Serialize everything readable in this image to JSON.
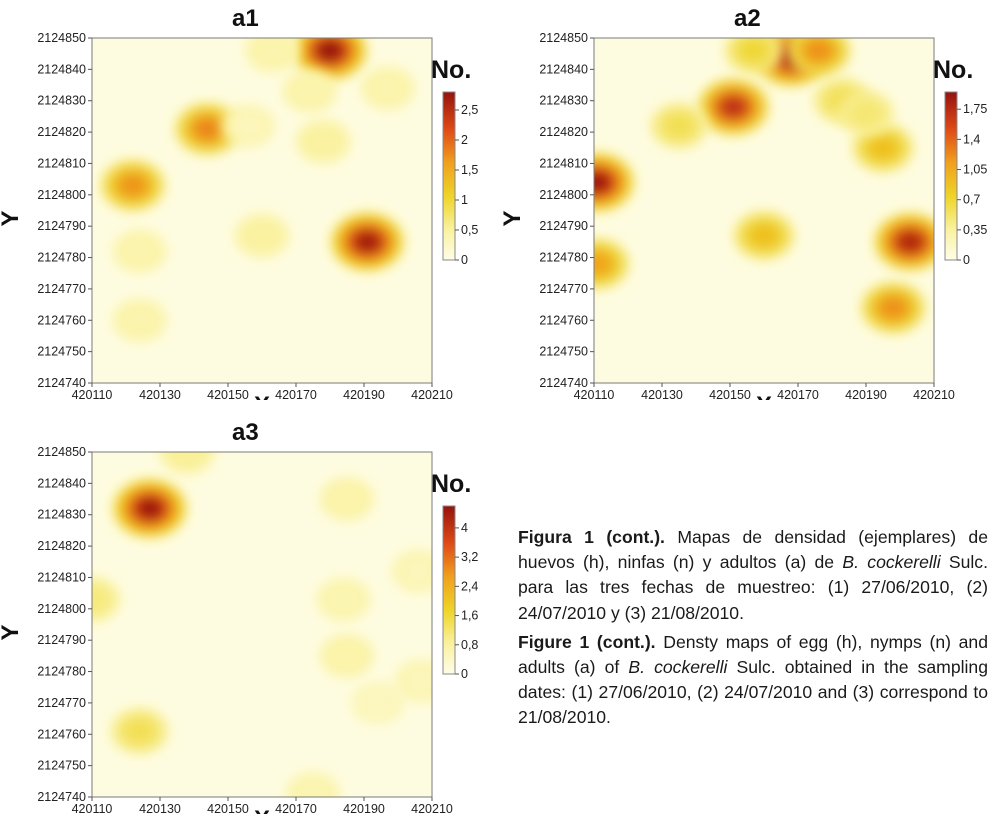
{
  "chart_data": [
    {
      "type": "heatmap",
      "title": "a1",
      "xlabel": "X",
      "ylabel": "Y",
      "xlim": [
        420110,
        420210
      ],
      "ylim": [
        2124740,
        2124850
      ],
      "xticks": [
        "420110",
        "420130",
        "420150",
        "420170",
        "420190",
        "420210"
      ],
      "yticks": [
        "2124850",
        "2124840",
        "2124830",
        "2124820",
        "2124810",
        "2124800",
        "2124790",
        "2124780",
        "2124770",
        "2124760",
        "2124750",
        "2124740"
      ],
      "colorbar": {
        "title": "No.",
        "min": 0,
        "max": 2.8,
        "ticks": [
          "2,5",
          "2",
          "1,5",
          "1",
          "0,5",
          "0"
        ],
        "tick_values": [
          2.5,
          2,
          1.5,
          1,
          0.5,
          0
        ]
      },
      "hotspots": [
        {
          "x": 420180,
          "y": 2124846,
          "value": 2.8
        },
        {
          "x": 420191,
          "y": 2124785,
          "value": 2.7
        },
        {
          "x": 420144,
          "y": 2124821,
          "value": 1.8
        },
        {
          "x": 420122,
          "y": 2124803,
          "value": 1.7
        },
        {
          "x": 420160,
          "y": 2124787,
          "value": 0.5
        },
        {
          "x": 420124,
          "y": 2124782,
          "value": 0.4
        },
        {
          "x": 420124,
          "y": 2124760,
          "value": 0.4
        },
        {
          "x": 420174,
          "y": 2124833,
          "value": 0.4
        },
        {
          "x": 420178,
          "y": 2124817,
          "value": 0.5
        },
        {
          "x": 420197,
          "y": 2124834,
          "value": 0.4
        },
        {
          "x": 420163,
          "y": 2124846,
          "value": 0.4
        },
        {
          "x": 420156,
          "y": 2124822,
          "value": 0.3
        }
      ]
    },
    {
      "type": "heatmap",
      "title": "a2",
      "xlabel": "X",
      "ylabel": "Y",
      "xlim": [
        420110,
        420210
      ],
      "ylim": [
        2124740,
        2124850
      ],
      "xticks": [
        "420110",
        "420130",
        "420150",
        "420170",
        "420190",
        "420210"
      ],
      "yticks": [
        "2124850",
        "2124840",
        "2124830",
        "2124820",
        "2124810",
        "2124800",
        "2124790",
        "2124780",
        "2124770",
        "2124760",
        "2124750",
        "2124740"
      ],
      "colorbar": {
        "title": "No.",
        "min": 0,
        "max": 1.95,
        "ticks": [
          "1,75",
          "1,4",
          "1,05",
          "0,7",
          "0,35",
          "0"
        ],
        "tick_values": [
          1.75,
          1.4,
          1.05,
          0.7,
          0.35,
          0
        ]
      },
      "hotspots": [
        {
          "x": 420168,
          "y": 2124844,
          "value": 1.9
        },
        {
          "x": 420151,
          "y": 2124828,
          "value": 1.7
        },
        {
          "x": 420111,
          "y": 2124804,
          "value": 1.9
        },
        {
          "x": 420111,
          "y": 2124778,
          "value": 1.1
        },
        {
          "x": 420203,
          "y": 2124785,
          "value": 1.8
        },
        {
          "x": 420198,
          "y": 2124764,
          "value": 1.2
        },
        {
          "x": 420160,
          "y": 2124787,
          "value": 0.9
        },
        {
          "x": 420195,
          "y": 2124815,
          "value": 0.9
        },
        {
          "x": 420135,
          "y": 2124822,
          "value": 0.6
        },
        {
          "x": 420157,
          "y": 2124846,
          "value": 0.7
        },
        {
          "x": 420183,
          "y": 2124830,
          "value": 0.6
        },
        {
          "x": 420190,
          "y": 2124826,
          "value": 0.5
        },
        {
          "x": 420176,
          "y": 2124846,
          "value": 1.2
        }
      ]
    },
    {
      "type": "heatmap",
      "title": "a3",
      "xlabel": "X",
      "ylabel": "Y",
      "xlim": [
        420110,
        420210
      ],
      "ylim": [
        2124740,
        2124850
      ],
      "xticks": [
        "420110",
        "420130",
        "420150",
        "420170",
        "420190",
        "420210"
      ],
      "yticks": [
        "2124850",
        "2124840",
        "2124830",
        "2124820",
        "2124810",
        "2124800",
        "2124790",
        "2124780",
        "2124770",
        "2124760",
        "2124750",
        "2124740"
      ],
      "colorbar": {
        "title": "No.",
        "min": 0,
        "max": 4.6,
        "ticks": [
          "4",
          "3,2",
          "2,4",
          "1,6",
          "0,8",
          "0"
        ],
        "tick_values": [
          4,
          3.2,
          2.4,
          1.6,
          0.8,
          0
        ]
      },
      "hotspots": [
        {
          "x": 420127,
          "y": 2124832,
          "value": 4.5
        },
        {
          "x": 420124,
          "y": 2124761,
          "value": 1.4
        },
        {
          "x": 420110,
          "y": 2124803,
          "value": 1.1
        },
        {
          "x": 420138,
          "y": 2124850,
          "value": 0.9
        },
        {
          "x": 420185,
          "y": 2124835,
          "value": 0.7
        },
        {
          "x": 420185,
          "y": 2124785,
          "value": 0.7
        },
        {
          "x": 420184,
          "y": 2124803,
          "value": 0.6
        },
        {
          "x": 420206,
          "y": 2124812,
          "value": 0.5
        },
        {
          "x": 420207,
          "y": 2124777,
          "value": 0.5
        },
        {
          "x": 420175,
          "y": 2124741,
          "value": 0.6
        },
        {
          "x": 420194,
          "y": 2124770,
          "value": 0.3
        }
      ]
    }
  ],
  "caption": {
    "es_label": "Figura 1 (cont.).",
    "es_text": " Mapas de densidad (ejemplares) de huevos (h), ninfas (n) y adultos (a) de ",
    "es_species": "B. cockerelli",
    "es_text2": " Sulc. para las tres fechas de muestreo: (1) 27/06/2010, (2) 24/07/2010 y (3) 21/08/2010.",
    "en_label": "Figure 1 (cont.).",
    "en_text": " Densty maps of egg (h), nymps (n) and adults (a) of ",
    "en_species": "B. cockerelli",
    "en_text2": " Sulc. obtained in the sampling dates: (1) 27/06/2010, (2) 24/07/2010 and (3) correspond to 21/08/2010."
  }
}
